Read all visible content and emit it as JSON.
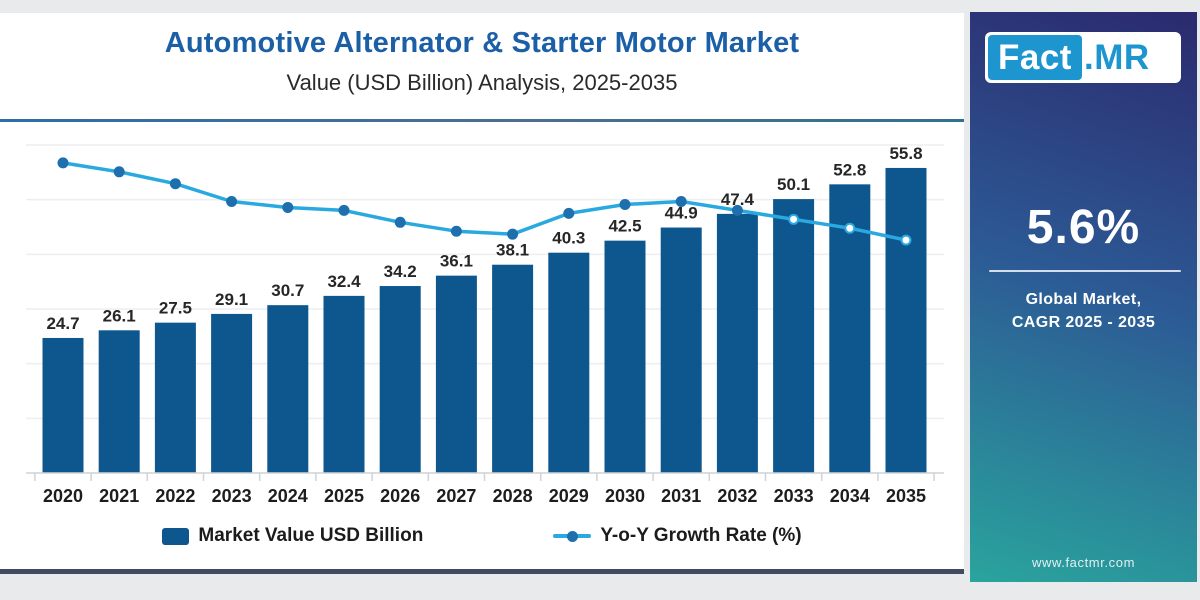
{
  "header": {
    "title": "Automotive Alternator & Starter Motor Market",
    "subtitle": "Value (USD Billion) Analysis, 2025-2035"
  },
  "chart_data": {
    "type": "bar+line combo",
    "categories": [
      "2020",
      "2021",
      "2022",
      "2023",
      "2024",
      "2025",
      "2026",
      "2027",
      "2028",
      "2029",
      "2030",
      "2031",
      "2032",
      "2033",
      "2034",
      "2035"
    ],
    "series": [
      {
        "name": "Market Value USD Billion",
        "type": "bar",
        "values": [
          24.7,
          26.1,
          27.5,
          29.1,
          30.7,
          32.4,
          34.2,
          36.1,
          38.1,
          40.3,
          42.5,
          44.9,
          47.4,
          50.1,
          52.8,
          55.8
        ],
        "color": "#0e578e",
        "data_labels_shown": true
      },
      {
        "name": "Y-o-Y Growth Rate (%)",
        "type": "line",
        "values": [
          7.5,
          7.2,
          6.8,
          6.2,
          6.0,
          5.9,
          5.5,
          5.2,
          5.1,
          5.8,
          6.1,
          6.2,
          5.9,
          5.6,
          5.3,
          4.9
        ],
        "values_are_estimated": true,
        "color": "#2aa9e0",
        "marker_color": "#1e6fae",
        "hollow_markers_from_index": 13
      }
    ],
    "ylim": [
      0,
      60
    ],
    "gridline_step": 10,
    "y2lim": [
      4.5,
      8.0
    ],
    "grid": true,
    "value_axis_labels_shown": false,
    "legend_position": "bottom"
  },
  "sidebar": {
    "logo_fact": "Fact",
    "logo_mr": ".MR",
    "cagr_value": "5.6%",
    "cagr_caption": [
      "Global Market,",
      "CAGR 2025 - 2035"
    ],
    "website": "www.factmr.com"
  },
  "colors": {
    "title_blue": "#1b5fa6",
    "bar_blue": "#0e578e",
    "line_blue": "#2aa9e0",
    "marker_blue": "#1e6fae",
    "sidebar_top": "#2b2a6e",
    "sidebar_mid": "#2c5a95",
    "sidebar_bottom": "#2aa49d",
    "logo_blue": "#1d96cf",
    "footer_line": "#434b62",
    "gridline_gray": "#eceef0",
    "axis_gray": "#cfd3d7",
    "label_dark": "#262626"
  }
}
